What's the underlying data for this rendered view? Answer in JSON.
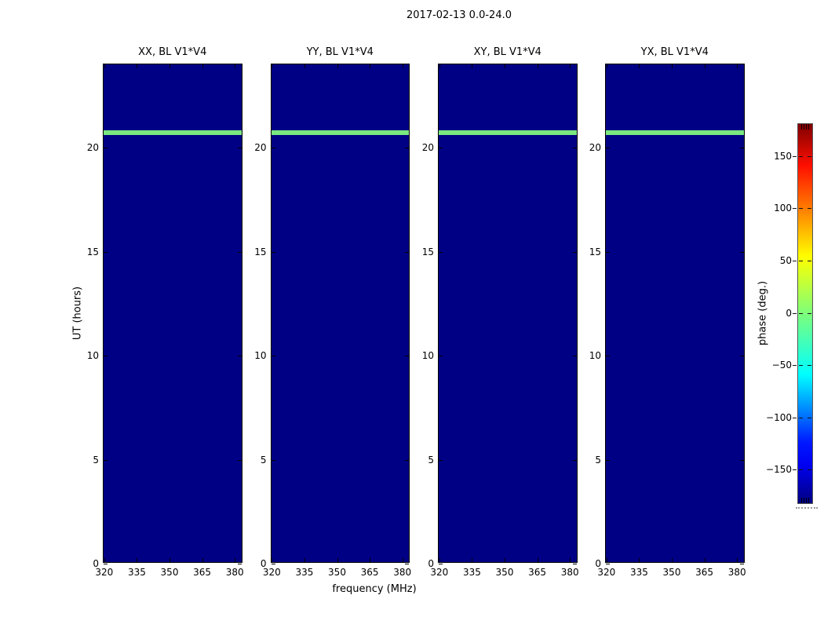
{
  "chart_data": {
    "type": "heatmap",
    "title": "2017-02-13 0.0-24.0",
    "panels": [
      {
        "title": "XX, BL V1*V4"
      },
      {
        "title": "YY, BL V1*V4"
      },
      {
        "title": "XY, BL V1*V4"
      },
      {
        "title": "YX, BL V1*V4"
      }
    ],
    "xlabel": "frequency (MHz)",
    "ylabel": "UT (hours)",
    "xlim": [
      319.7,
      383.7
    ],
    "ylim": [
      0,
      24
    ],
    "xticks": [
      "320",
      "335",
      "350",
      "365",
      "380"
    ],
    "xtick_values": [
      320,
      335,
      350,
      365,
      380
    ],
    "yticks": [
      "20",
      "15",
      "10",
      "5",
      "0"
    ],
    "ytick_values": [
      20,
      15,
      10,
      5,
      0
    ],
    "grid": false,
    "colorbar": {
      "label": "phase (deg.)",
      "ticks": [
        "150",
        "100",
        "50",
        "0",
        "−50",
        "−100",
        "−150"
      ],
      "tick_values": [
        150,
        100,
        50,
        0,
        -50,
        -100,
        -150
      ],
      "clim": [
        -181.5,
        181.5
      ],
      "colormap": "jet"
    },
    "heatmap": {
      "background_phase_deg": -180,
      "scan_rows": [
        {
          "ut_start": 20.6,
          "ut_end": 20.85,
          "phase_deg": 0
        }
      ]
    },
    "colors": {
      "background": "#000084",
      "scan": "#7ae87f"
    }
  }
}
